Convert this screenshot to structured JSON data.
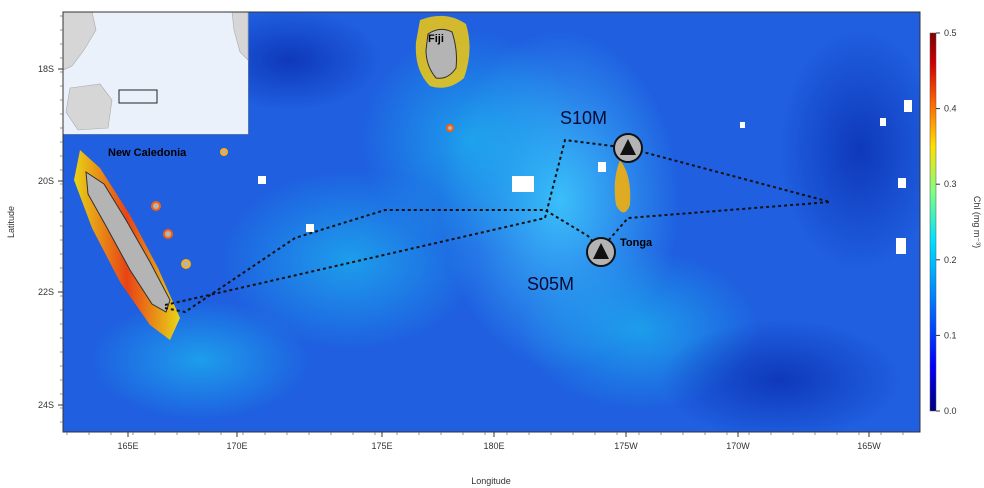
{
  "axes": {
    "xlabel": "Longitude",
    "ylabel": "Latitude",
    "x_ticks": [
      "165E",
      "170E",
      "175E",
      "180E",
      "175W",
      "170W",
      "165W"
    ],
    "y_ticks": [
      "18S",
      "20S",
      "22S",
      "24S"
    ]
  },
  "colorbar": {
    "label": "Chl (mg m⁻³)",
    "ticks": [
      "0.5",
      "0.4",
      "0.3",
      "0.2",
      "0.1",
      "0.0"
    ],
    "min": 0.0,
    "max": 0.5,
    "colors": [
      "#00007f",
      "#0000ff",
      "#0080ff",
      "#00e0ff",
      "#80ff80",
      "#ffe000",
      "#ff6000",
      "#d00000",
      "#7f0000"
    ]
  },
  "labels": {
    "fiji": "Fiji",
    "new_caledonia": "New Caledonia",
    "tonga": "Tonga"
  },
  "stations": [
    {
      "name": "S10M"
    },
    {
      "name": "S05M"
    }
  ],
  "colors": {
    "ocean": "#1f5fe0",
    "land": "#b4b4b4",
    "cloud": "#ffffff"
  }
}
